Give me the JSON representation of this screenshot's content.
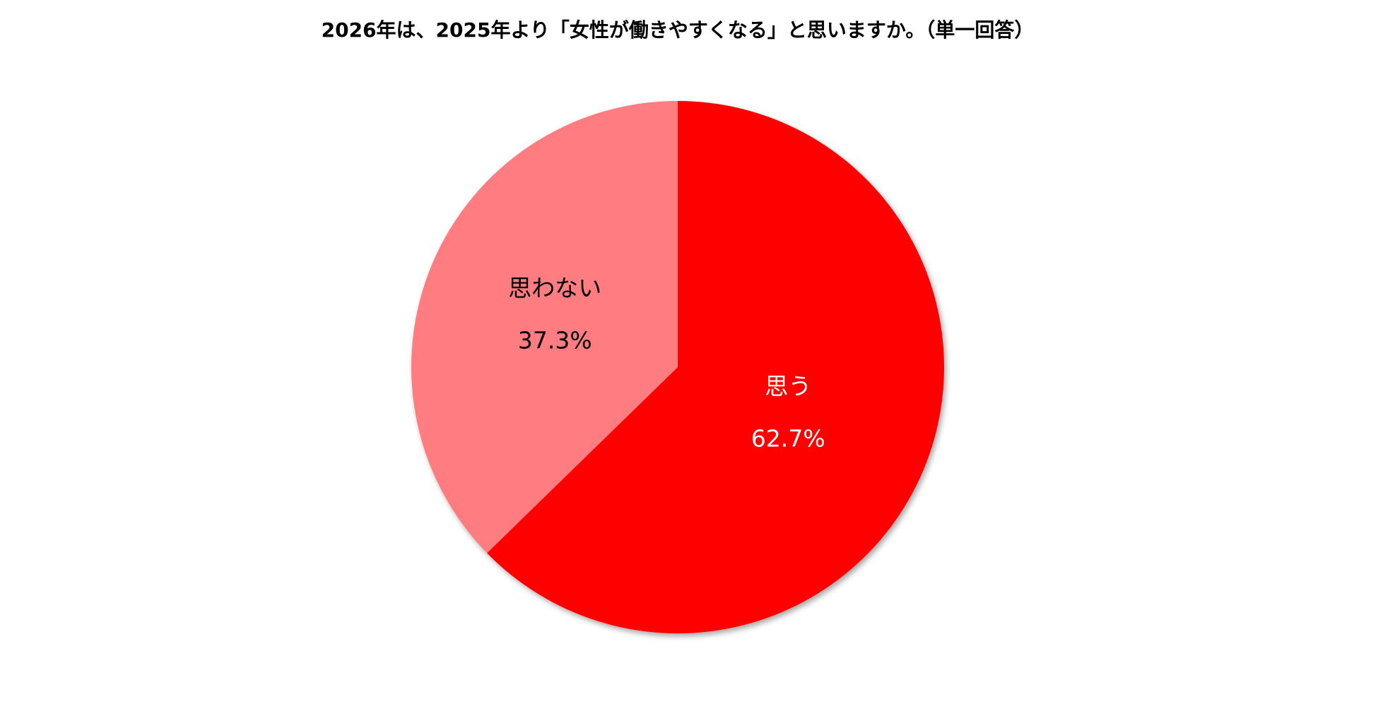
{
  "chart_data": {
    "type": "pie",
    "title": "2026年は、2025年より「女性が働きやすくなる」と思いますか。（単一回答）",
    "categories": [
      "思う",
      "思わない"
    ],
    "values": [
      62.7,
      37.3
    ],
    "value_labels": [
      "62.7%",
      "37.3%"
    ],
    "colors": [
      "#ff0000",
      "#ff7c80"
    ]
  }
}
